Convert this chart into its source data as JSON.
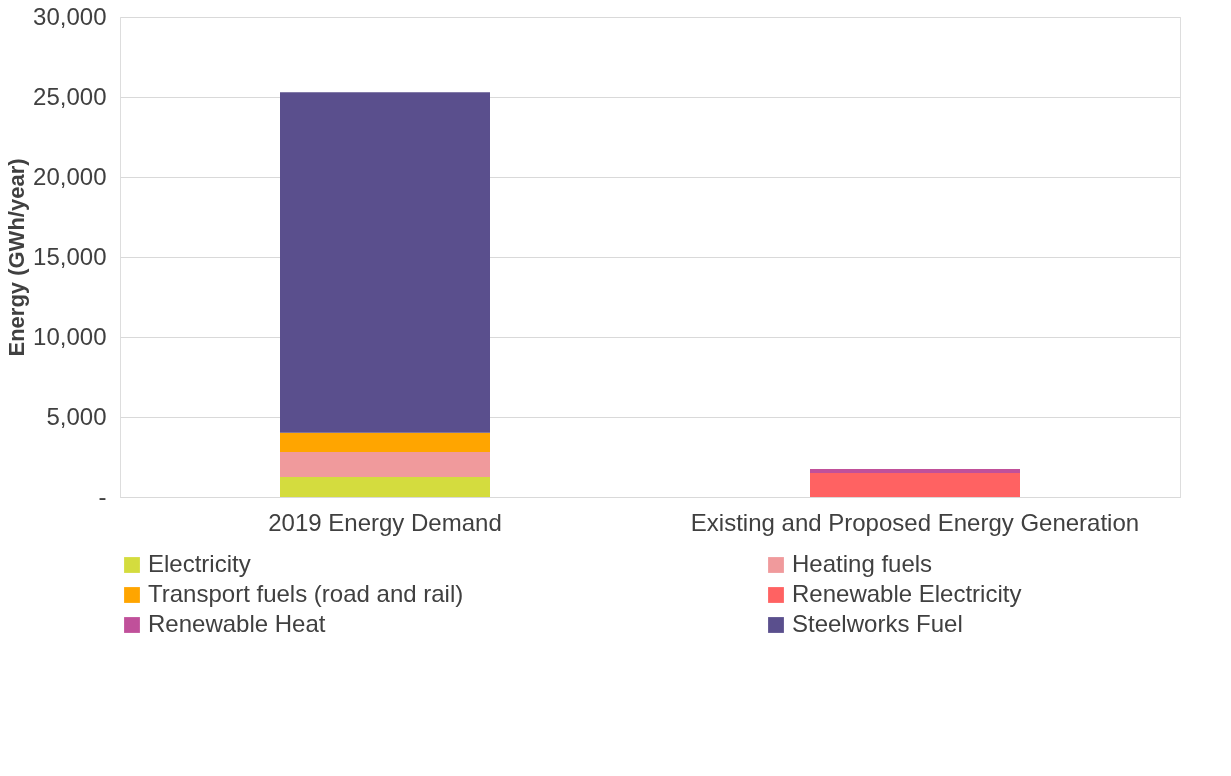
{
  "chart_data": {
    "type": "bar",
    "stacked": true,
    "ylabel": "Energy (GWh/year)",
    "categories": [
      "2019 Energy Demand",
      "Existing and Proposed Energy Generation"
    ],
    "series": [
      {
        "name": "Electricity",
        "color": "#d4dc3e",
        "values": [
          1250,
          null
        ]
      },
      {
        "name": "Heating fuels",
        "color": "#f09a9c",
        "values": [
          1570,
          null
        ]
      },
      {
        "name": "Transport fuels (road and rail)",
        "color": "#ffa500",
        "values": [
          1190,
          null
        ]
      },
      {
        "name": "Renewable Electricity",
        "color": "#ff6262",
        "values": [
          null,
          1500
        ]
      },
      {
        "name": "Renewable Heat",
        "color": "#c0509a",
        "values": [
          null,
          250
        ]
      },
      {
        "name": "Steelworks Fuel",
        "color": "#5a4f8d",
        "values": [
          21290,
          null
        ]
      }
    ],
    "ylim": [
      0,
      30000
    ],
    "yticks": [
      {
        "value": 0,
        "label": "-"
      },
      {
        "value": 5000,
        "label": "5,000"
      },
      {
        "value": 10000,
        "label": "10,000"
      },
      {
        "value": 15000,
        "label": "15,000"
      },
      {
        "value": 20000,
        "label": "20,000"
      },
      {
        "value": 25000,
        "label": "25,000"
      },
      {
        "value": 30000,
        "label": "30,000"
      }
    ],
    "grid": "y",
    "legend": "bottom"
  }
}
